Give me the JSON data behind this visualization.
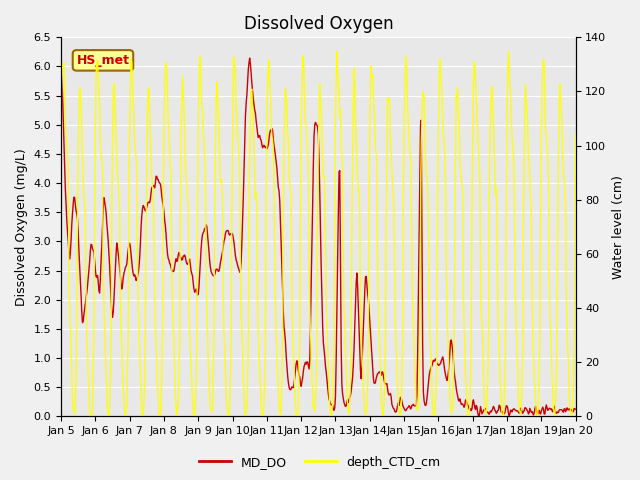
{
  "title": "Dissolved Oxygen",
  "ylabel_left": "Dissolved Oxygen (mg/L)",
  "ylabel_right": "Water level (cm)",
  "annotation": "HS_met",
  "ylim_left": [
    0.0,
    6.5
  ],
  "ylim_right": [
    0,
    140
  ],
  "yticks_left": [
    0.0,
    0.5,
    1.0,
    1.5,
    2.0,
    2.5,
    3.0,
    3.5,
    4.0,
    4.5,
    5.0,
    5.5,
    6.0,
    6.5
  ],
  "yticks_right": [
    0,
    20,
    40,
    60,
    80,
    100,
    120,
    140
  ],
  "legend_labels": [
    "MD_DO",
    "depth_CTD_cm"
  ],
  "line_colors": [
    "#cc0000",
    "#ffff00"
  ],
  "bg_color": "#f0f0f0",
  "plot_bg": "#e8e8e8",
  "grid_color": "#ffffff",
  "title_fontsize": 12,
  "label_fontsize": 9,
  "tick_fontsize": 8,
  "annotation_bg": "#ffff99",
  "annotation_border": "#996600",
  "annotation_text_color": "#cc0000"
}
